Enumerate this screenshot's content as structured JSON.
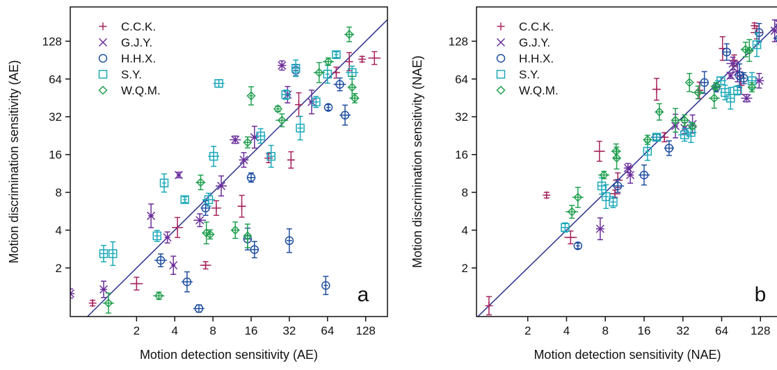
{
  "colors": {
    "C.C.K.": "#a8245e",
    "G.J.Y.": "#6a2d9a",
    "H.H.X.": "#1f4fa0",
    "S.Y.": "#1aa8b8",
    "W.Q.M.": "#22a050",
    "identity": "#2b2f8c"
  },
  "chart_data": [
    {
      "type": "scatter",
      "panel_letter": "a",
      "xlabel": "Motion detection sensitivity (AE)",
      "ylabel": "Motion discrimination sensitivity (AE)",
      "scale": "log2",
      "xlim": [
        0.6,
        190
      ],
      "ylim": [
        0.82,
        240
      ],
      "xticks": [
        "2",
        "4",
        "8",
        "16",
        "32",
        "64",
        "128"
      ],
      "yticks": [
        "2",
        "4",
        "8",
        "16",
        "32",
        "64",
        "128"
      ],
      "identity_line": true,
      "legend_position": "top-left",
      "series": [
        {
          "name": "C.C.K.",
          "marker": "plus",
          "points": [
            [
              0.9,
              1.05
            ],
            [
              2.0,
              1.5
            ],
            [
              4.2,
              4.2
            ],
            [
              7.0,
              2.1
            ],
            [
              8.5,
              6.0
            ],
            [
              13.5,
              6.2
            ],
            [
              22,
              15
            ],
            [
              33,
              14.5
            ],
            [
              38,
              40
            ],
            [
              75,
              72
            ],
            [
              95,
              88
            ],
            [
              120,
              92
            ],
            [
              150,
              94
            ]
          ]
        },
        {
          "name": "G.J.Y.",
          "marker": "x",
          "points": [
            [
              0.6,
              1.25
            ],
            [
              1.1,
              1.35
            ],
            [
              2.6,
              5.2
            ],
            [
              3.5,
              3.5
            ],
            [
              3.9,
              2.1
            ],
            [
              4.3,
              11
            ],
            [
              6.3,
              4.8
            ],
            [
              9.3,
              9.0
            ],
            [
              12,
              21
            ],
            [
              14,
              14.5
            ],
            [
              17,
              22
            ],
            [
              28,
              82
            ],
            [
              31,
              48
            ],
            [
              48,
              42
            ]
          ]
        },
        {
          "name": "H.H.X.",
          "marker": "circle",
          "points": [
            [
              3.1,
              2.3
            ],
            [
              5.0,
              1.55
            ],
            [
              6.2,
              0.95
            ],
            [
              7.0,
              6.0
            ],
            [
              15,
              3.4
            ],
            [
              16,
              10.5
            ],
            [
              17,
              2.8
            ],
            [
              32,
              3.3
            ],
            [
              36,
              75
            ],
            [
              62,
              1.45
            ],
            [
              65,
              38
            ],
            [
              80,
              58
            ],
            [
              88,
              33
            ]
          ]
        },
        {
          "name": "S.Y.",
          "marker": "square",
          "points": [
            [
              1.1,
              2.6
            ],
            [
              1.3,
              2.6
            ],
            [
              2.9,
              3.6
            ],
            [
              3.3,
              9.5
            ],
            [
              4.8,
              7.0
            ],
            [
              7.4,
              7.0
            ],
            [
              8.1,
              15.5
            ],
            [
              8.9,
              59
            ],
            [
              19,
              22.5
            ],
            [
              23,
              15.5
            ],
            [
              30,
              48
            ],
            [
              36,
              78
            ],
            [
              39,
              26
            ],
            [
              52,
              42
            ],
            [
              64,
              70
            ],
            [
              75,
              100
            ],
            [
              100,
              72
            ]
          ]
        },
        {
          "name": "W.Q.M.",
          "marker": "diamond",
          "points": [
            [
              1.2,
              1.05
            ],
            [
              3.0,
              1.2
            ],
            [
              6.4,
              9.6
            ],
            [
              7.1,
              3.8
            ],
            [
              7.6,
              3.7
            ],
            [
              12,
              4.0
            ],
            [
              15,
              3.6
            ],
            [
              15,
              20
            ],
            [
              16,
              47
            ],
            [
              26,
              37
            ],
            [
              28,
              30
            ],
            [
              55,
              72
            ],
            [
              65,
              88
            ],
            [
              95,
              145
            ],
            [
              100,
              55
            ],
            [
              105,
              45
            ]
          ]
        }
      ]
    },
    {
      "type": "scatter",
      "panel_letter": "b",
      "xlabel": "Motion detection sensitivity (NAE)",
      "ylabel": "Motion discrimination sensitivity (NAE)",
      "scale": "log2",
      "xlim": [
        0.8,
        190
      ],
      "ylim": [
        0.82,
        240
      ],
      "xticks": [
        "2",
        "4",
        "8",
        "16",
        "32",
        "64",
        "128"
      ],
      "yticks": [
        "2",
        "4",
        "8",
        "16",
        "32",
        "64",
        "128"
      ],
      "identity_line": true,
      "legend_position": "top-left",
      "series": [
        {
          "name": "C.C.K.",
          "marker": "plus",
          "points": [
            [
              1.0,
              1.0
            ],
            [
              2.8,
              7.6
            ],
            [
              4.3,
              3.5
            ],
            [
              7.2,
              17
            ],
            [
              9.5,
              7.8
            ],
            [
              10,
              10
            ],
            [
              20,
              53
            ],
            [
              23,
              22
            ],
            [
              43,
              52
            ],
            [
              65,
              112
            ],
            [
              80,
              90
            ],
            [
              90,
              57
            ],
            [
              115,
              170
            ],
            [
              120,
              150
            ]
          ]
        },
        {
          "name": "G.J.Y.",
          "marker": "x",
          "points": [
            [
              7.3,
              4.1
            ],
            [
              12,
              12.5
            ],
            [
              12.5,
              11
            ],
            [
              28,
              27
            ],
            [
              33,
              26
            ],
            [
              38,
              28
            ],
            [
              75,
              68
            ],
            [
              78,
              85
            ],
            [
              85,
              73
            ],
            [
              100,
              45
            ],
            [
              125,
              62
            ],
            [
              165,
              155
            ],
            [
              180,
              175
            ]
          ]
        },
        {
          "name": "H.H.X.",
          "marker": "circle",
          "points": [
            [
              4.9,
              3.0
            ],
            [
              10,
              9.0
            ],
            [
              16,
              11
            ],
            [
              20,
              22
            ],
            [
              25,
              18
            ],
            [
              47,
              60
            ],
            [
              58,
              55
            ],
            [
              70,
              105
            ],
            [
              88,
              68
            ],
            [
              95,
              65
            ],
            [
              125,
              150
            ],
            [
              190,
              190
            ],
            [
              180,
              135
            ]
          ]
        },
        {
          "name": "S.Y.",
          "marker": "square",
          "points": [
            [
              3.9,
              4.2
            ],
            [
              7.5,
              9.0
            ],
            [
              8.1,
              7.4
            ],
            [
              9.2,
              6.7
            ],
            [
              17,
              17
            ],
            [
              20,
              22
            ],
            [
              33,
              23
            ],
            [
              37,
              24
            ],
            [
              63,
              62
            ],
            [
              68,
              50
            ],
            [
              75,
              45
            ],
            [
              85,
              52
            ],
            [
              110,
              62
            ],
            [
              120,
              120
            ]
          ]
        },
        {
          "name": "W.Q.M.",
          "marker": "diamond",
          "points": [
            [
              4.4,
              5.6
            ],
            [
              4.9,
              7.3
            ],
            [
              7.8,
              11
            ],
            [
              9.7,
              17
            ],
            [
              9.8,
              15
            ],
            [
              17,
              21
            ],
            [
              21,
              35
            ],
            [
              28,
              30
            ],
            [
              33,
              30
            ],
            [
              36,
              60
            ],
            [
              38,
              27
            ],
            [
              42,
              50
            ],
            [
              56,
              45
            ],
            [
              58,
              56
            ],
            [
              98,
              110
            ],
            [
              105,
              108
            ],
            [
              110,
              55
            ]
          ]
        }
      ]
    }
  ]
}
